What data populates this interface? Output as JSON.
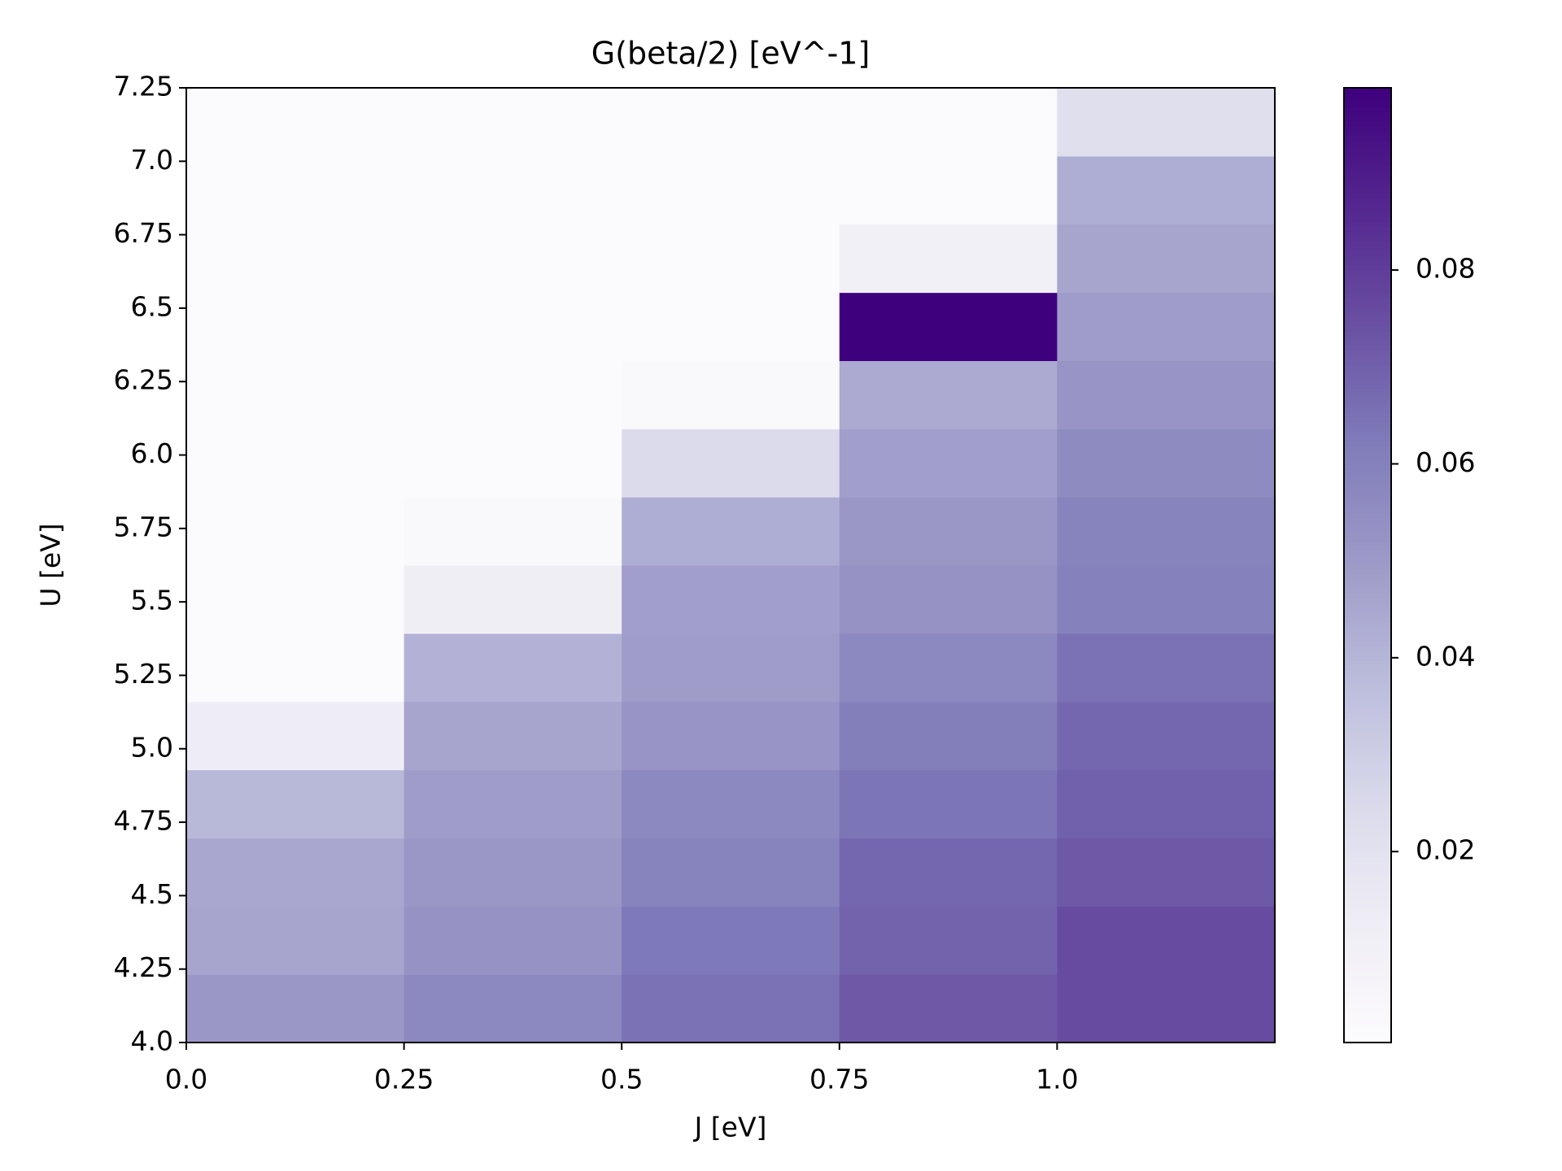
{
  "chart_data": {
    "type": "heatmap",
    "title": "G(beta/2) [eV^-1]",
    "xlabel": "J [eV]",
    "ylabel": "U [eV]",
    "xlim": [
      0,
      1.25
    ],
    "ylim": [
      4.0,
      7.25
    ],
    "xticks": [
      {
        "value": 0,
        "label": "0.0"
      },
      0.25,
      0.5,
      0.75,
      {
        "value": 1,
        "label": "1.0"
      }
    ],
    "yticks": [
      {
        "value": 4,
        "label": "4.0"
      },
      4.25,
      4.5,
      4.75,
      {
        "value": 5,
        "label": "5.0"
      },
      5.25,
      5.5,
      5.75,
      {
        "value": 6,
        "label": "6.0"
      },
      6.25,
      6.5,
      6.75,
      {
        "value": 7,
        "label": "7.0"
      },
      7.25
    ],
    "values": [
      [
        0.051,
        0.057,
        0.065,
        0.072,
        0.076
      ],
      [
        0.046,
        0.053,
        0.063,
        0.069,
        0.076
      ],
      [
        0.045,
        0.051,
        0.059,
        0.068,
        0.072
      ],
      [
        0.039,
        0.049,
        0.057,
        0.064,
        0.07
      ],
      [
        0.013,
        0.046,
        0.052,
        0.061,
        0.068
      ],
      [
        0.001,
        0.041,
        0.049,
        0.057,
        0.065
      ],
      [
        0.001,
        0.012,
        0.048,
        0.053,
        0.06
      ],
      [
        0.001,
        0.003,
        0.043,
        0.051,
        0.059
      ],
      [
        0.001,
        0.001,
        0.024,
        0.048,
        0.056
      ],
      [
        0.001,
        0.001,
        0.003,
        0.044,
        0.052
      ],
      [
        0.001,
        0.001,
        0.001,
        0.0988,
        0.049
      ],
      [
        0.001,
        0.001,
        0.001,
        0.01,
        0.046
      ],
      [
        0.001,
        0.001,
        0.001,
        0.001,
        0.043
      ],
      [
        0.001,
        0.001,
        0.001,
        0.001,
        0.022
      ]
    ],
    "clim": [
      0.0003,
      0.0988
    ],
    "cticks": [
      0.02,
      0.04,
      0.06,
      0.08
    ],
    "colormap": [
      "#fcfbfd",
      "#efedf5",
      "#dadaeb",
      "#bcbddc",
      "#9e9ac8",
      "#807dba",
      "#6a51a3",
      "#54278f",
      "#3f007d"
    ]
  }
}
